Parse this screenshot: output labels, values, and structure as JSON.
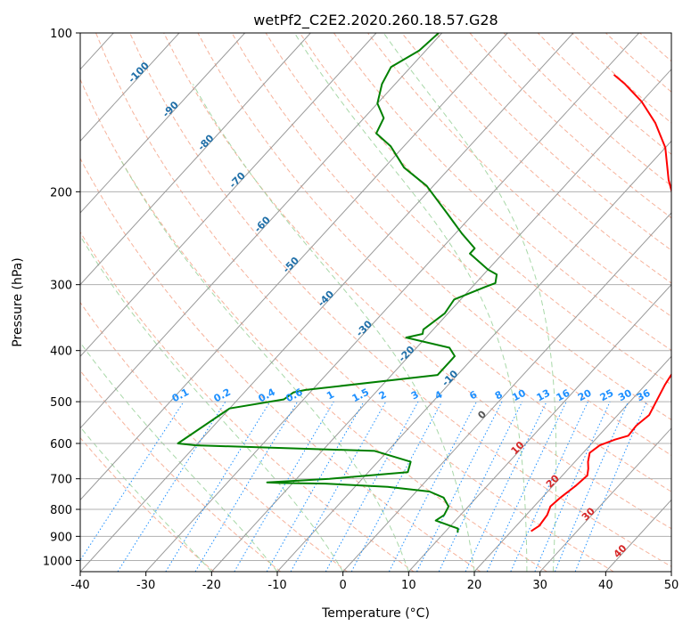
{
  "chart_data": {
    "type": "line",
    "title": "wetPf2_C2E2.2020.260.18.57.G28",
    "xlabel": "Temperature (°C)",
    "ylabel": "Pressure (hPa)",
    "xlim": [
      -40,
      50
    ],
    "ylim": [
      1050,
      100
    ],
    "y_scale": "log",
    "grid": true,
    "x_ticks": [
      -40,
      -30,
      -20,
      -10,
      0,
      10,
      20,
      30,
      40,
      50
    ],
    "y_ticks": [
      1000,
      900,
      800,
      700,
      600,
      500,
      400,
      300,
      200,
      100
    ],
    "skew_lines": [
      -100,
      -90,
      -80,
      -70,
      -60,
      -50,
      -40,
      -30,
      -20,
      -10,
      0,
      10,
      20,
      30,
      40
    ],
    "skew_labels": [
      "-100",
      "-90",
      "-80",
      "-70",
      "-60",
      "-50",
      "-40",
      "-30",
      "-20",
      "-10",
      "0",
      "10",
      "20",
      "30",
      "40"
    ],
    "mixing_ratio_labels": [
      "0.1",
      "0.2",
      "0.4",
      "0.6",
      "1",
      "1.5",
      "2",
      "3",
      "4",
      "6",
      "8",
      "10",
      "13",
      "16",
      "20",
      "25",
      "30",
      "36"
    ],
    "colors": {
      "temperature": "#ff0000",
      "dewpoint": "#008000",
      "isotherm": "#999999",
      "dry_adiabat": "#f4a58a",
      "moist_adiabat": "#9fd49f",
      "mixing_ratio": "#1e90ff",
      "cold_label": "#1f6fa8",
      "warm_label": "#d62728"
    },
    "series": [
      {
        "x": [
          23.0,
          23.5,
          23.2,
          22.5,
          22.8,
          23.5,
          23.8,
          23.0,
          22.0,
          21.0,
          21.5,
          23.0,
          24.5,
          24.3,
          24.8,
          24.0,
          23.0,
          22.0,
          19.0,
          14.0,
          8.0,
          2.0,
          -5.0,
          -10.0,
          -15.0,
          -20.0,
          -25.0,
          -28.0
        ],
        "y": [
          880,
          860,
          820,
          790,
          760,
          720,
          690,
          670,
          650,
          625,
          605,
          590,
          580,
          555,
          530,
          500,
          465,
          420,
          370,
          310,
          265,
          225,
          190,
          165,
          148,
          135,
          125,
          120
        ]
      },
      {
        "x": [
          12.0,
          11.5,
          8.5,
          7.0,
          7.5,
          7.0,
          5.0,
          2.0,
          -5.0,
          -15.0,
          -22.0,
          -24.0,
          -15.0,
          -4.0,
          -5.0,
          -12.0,
          -40.0,
          -43.0,
          -40.0,
          -33.0,
          -32.5,
          -31.0,
          -13.0,
          -13.0,
          -15.0,
          -23.0,
          -21.0,
          -21.5,
          -20.5,
          -21.0,
          -18.0,
          -17.0,
          -18.0,
          -20.0,
          -25.0,
          -25.0,
          -29.0,
          -34.0,
          -41.0,
          -47.0,
          -52.0,
          -56.0,
          -57.0,
          -60.0,
          -62.0,
          -63.0,
          -61.0,
          -60.5
        ],
        "y": [
          885,
          870,
          850,
          840,
          820,
          790,
          760,
          740,
          725,
          715,
          713,
          711,
          700,
          680,
          650,
          620,
          605,
          600,
          515,
          495,
          480,
          475,
          445,
          410,
          395,
          378,
          372,
          365,
          340,
          320,
          303,
          298,
          287,
          281,
          262,
          256,
          240,
          220,
          195,
          180,
          164,
          155,
          145,
          136,
          125,
          116,
          108,
          100
        ]
      }
    ]
  }
}
